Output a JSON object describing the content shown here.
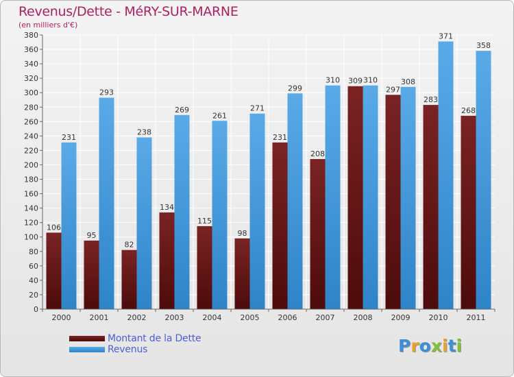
{
  "title": "Revenus/Dette - MéRY-SUR-MARNE",
  "subtitle": "(en milliers d'€)",
  "logo": {
    "text": "Proxiti",
    "letter_colors": [
      "#3a8fd6",
      "#e8a12e",
      "#3a8fd6",
      "#7fbf3a",
      "#e8a12e",
      "#3a8fd6",
      "#7fbf3a"
    ]
  },
  "colors": {
    "dette": "#7a2323",
    "dette_dark": "#4d0b0b",
    "revenus": "#5aaae8",
    "revenus_dark": "#2e84c8",
    "legend_text": "#4b5ed6",
    "title": "#b0205e"
  },
  "chart_data": {
    "type": "bar",
    "categories": [
      "2000",
      "2001",
      "2002",
      "2003",
      "2004",
      "2005",
      "2006",
      "2007",
      "2008",
      "2009",
      "2010",
      "2011"
    ],
    "series": [
      {
        "name": "Montant de la Dette",
        "values": [
          106,
          95,
          82,
          134,
          115,
          98,
          231,
          208,
          309,
          297,
          283,
          268
        ]
      },
      {
        "name": "Revenus",
        "values": [
          231,
          293,
          238,
          269,
          261,
          271,
          299,
          310,
          310,
          308,
          371,
          358
        ]
      }
    ],
    "ylim": [
      0,
      380
    ],
    "ytick_step": 20,
    "grid": true,
    "legend_position": "bottom-left"
  }
}
